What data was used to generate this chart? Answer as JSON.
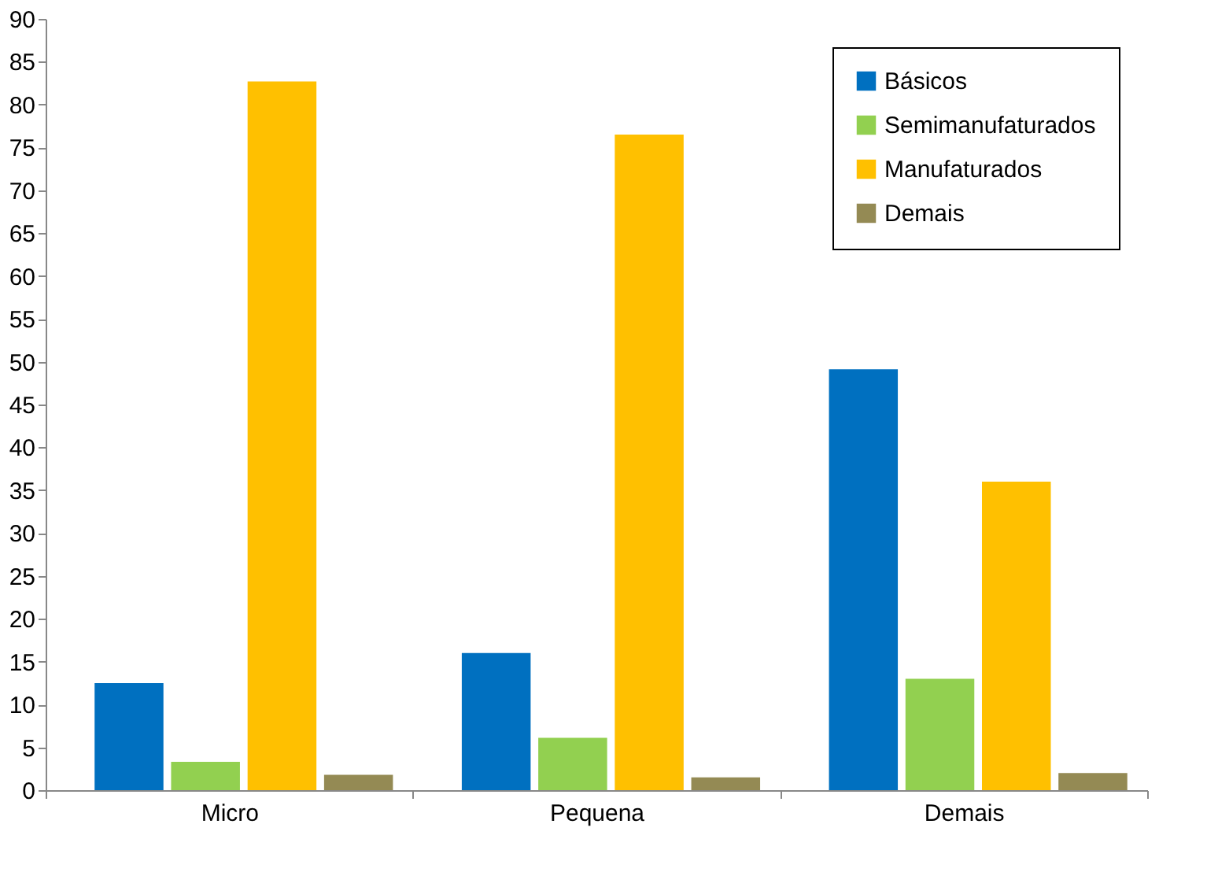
{
  "chart_data": {
    "type": "bar",
    "categories": [
      "Micro",
      "Pequena",
      "Demais"
    ],
    "series": [
      {
        "name": "Básicos",
        "color": "#0070c0",
        "values": [
          12.5,
          16.0,
          49.1
        ]
      },
      {
        "name": "Semimanufaturados",
        "color": "#92d050",
        "values": [
          3.3,
          6.1,
          13.0
        ]
      },
      {
        "name": "Manufaturados",
        "color": "#ffc000",
        "values": [
          82.7,
          76.5,
          36.0
        ]
      },
      {
        "name": "Demais",
        "color": "#948a54",
        "values": [
          1.8,
          1.5,
          2.0
        ]
      }
    ],
    "ylim": [
      0,
      90
    ],
    "yticks": [
      0,
      5,
      10,
      15,
      20,
      25,
      30,
      35,
      40,
      45,
      50,
      55,
      60,
      65,
      70,
      75,
      80,
      85,
      90
    ],
    "grid": false,
    "legend": "top right"
  }
}
